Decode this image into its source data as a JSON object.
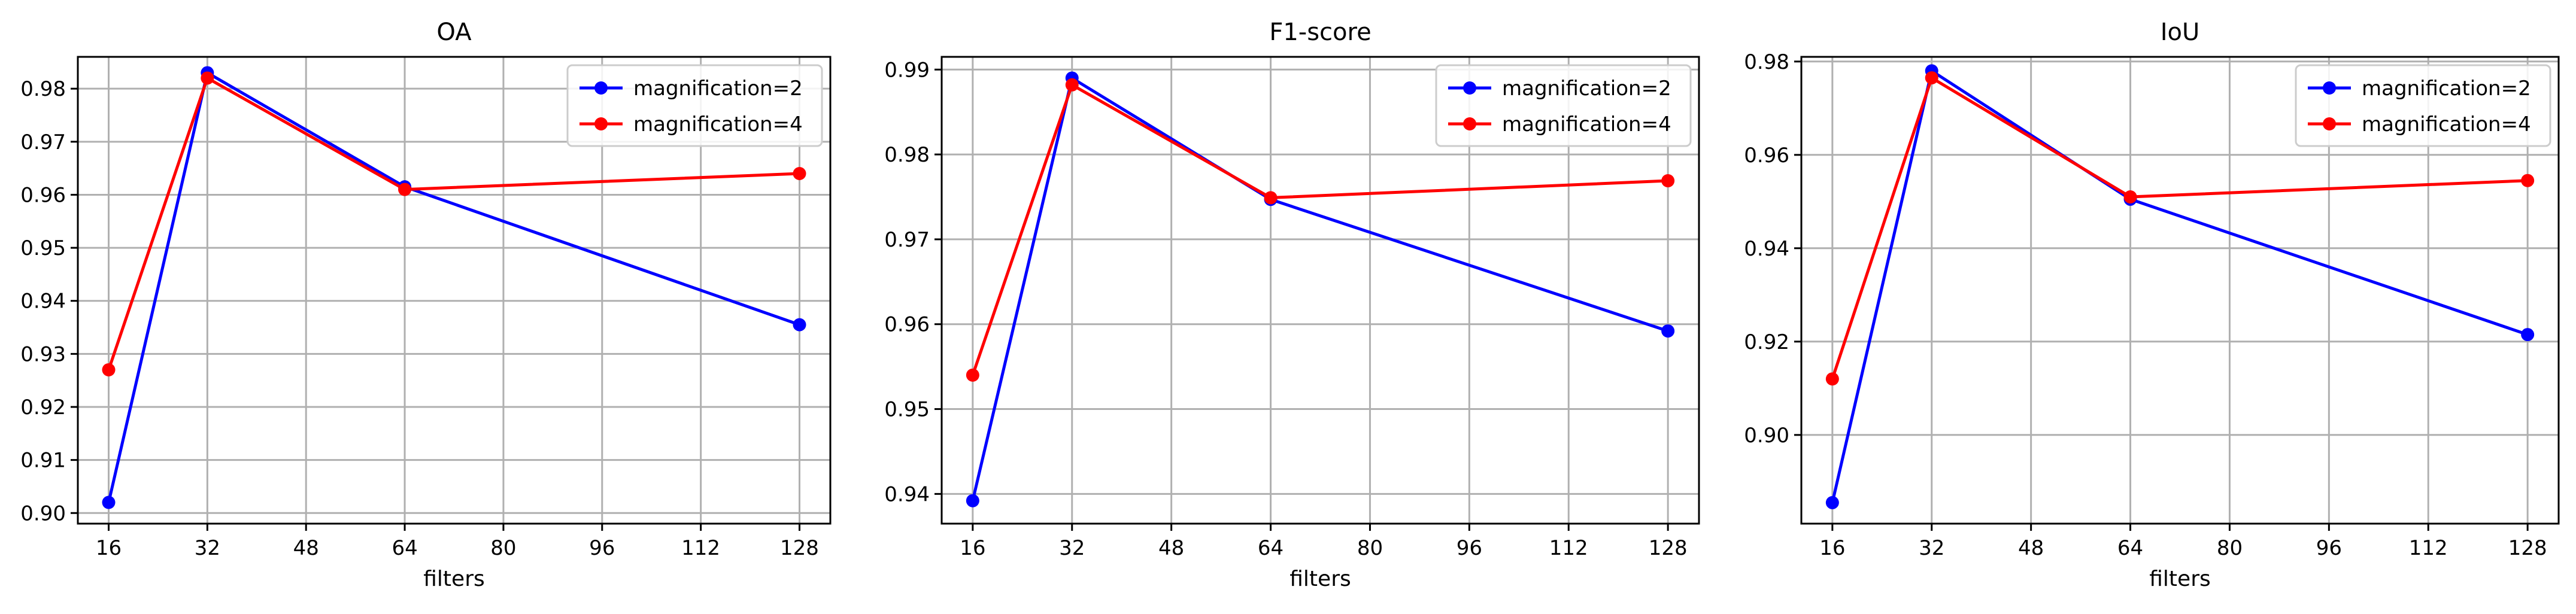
{
  "chart_data": [
    {
      "type": "line",
      "title": "OA",
      "xlabel": "filters",
      "ylabel": "",
      "xticks": [
        16,
        32,
        48,
        64,
        80,
        96,
        112,
        128
      ],
      "xlim": [
        11,
        133
      ],
      "yticks": [
        0.9,
        0.91,
        0.92,
        0.93,
        0.94,
        0.95,
        0.96,
        0.97,
        0.98
      ],
      "ytick_decimals": 2,
      "ylim": [
        0.898,
        0.986
      ],
      "grid": true,
      "legend_position": "top-right",
      "x": [
        16,
        32,
        64,
        128
      ],
      "series": [
        {
          "name": "magnification=2",
          "color": "#0000ff",
          "values": [
            0.902,
            0.983,
            0.9615,
            0.9355
          ]
        },
        {
          "name": "magnification=4",
          "color": "#ff0000",
          "values": [
            0.927,
            0.982,
            0.961,
            0.964
          ]
        }
      ]
    },
    {
      "type": "line",
      "title": "F1-score",
      "xlabel": "filters",
      "ylabel": "",
      "xticks": [
        16,
        32,
        48,
        64,
        80,
        96,
        112,
        128
      ],
      "xlim": [
        11,
        133
      ],
      "yticks": [
        0.94,
        0.95,
        0.96,
        0.97,
        0.98,
        0.99
      ],
      "ytick_decimals": 2,
      "ylim": [
        0.9365,
        0.9915
      ],
      "grid": true,
      "legend_position": "top-right",
      "x": [
        16,
        32,
        64,
        128
      ],
      "series": [
        {
          "name": "magnification=2",
          "color": "#0000ff",
          "values": [
            0.9392,
            0.989,
            0.9747,
            0.9592
          ]
        },
        {
          "name": "magnification=4",
          "color": "#ff0000",
          "values": [
            0.954,
            0.9882,
            0.9749,
            0.9769
          ]
        }
      ]
    },
    {
      "type": "line",
      "title": "IoU",
      "xlabel": "filters",
      "ylabel": "",
      "xticks": [
        16,
        32,
        48,
        64,
        80,
        96,
        112,
        128
      ],
      "xlim": [
        11,
        133
      ],
      "yticks": [
        0.9,
        0.92,
        0.94,
        0.96,
        0.98
      ],
      "ytick_decimals": 2,
      "ylim": [
        0.881,
        0.981
      ],
      "grid": true,
      "legend_position": "top-right",
      "x": [
        16,
        32,
        64,
        128
      ],
      "series": [
        {
          "name": "magnification=2",
          "color": "#0000ff",
          "values": [
            0.8855,
            0.978,
            0.9505,
            0.9215
          ]
        },
        {
          "name": "magnification=4",
          "color": "#ff0000",
          "values": [
            0.912,
            0.9765,
            0.951,
            0.9545
          ]
        }
      ]
    }
  ]
}
